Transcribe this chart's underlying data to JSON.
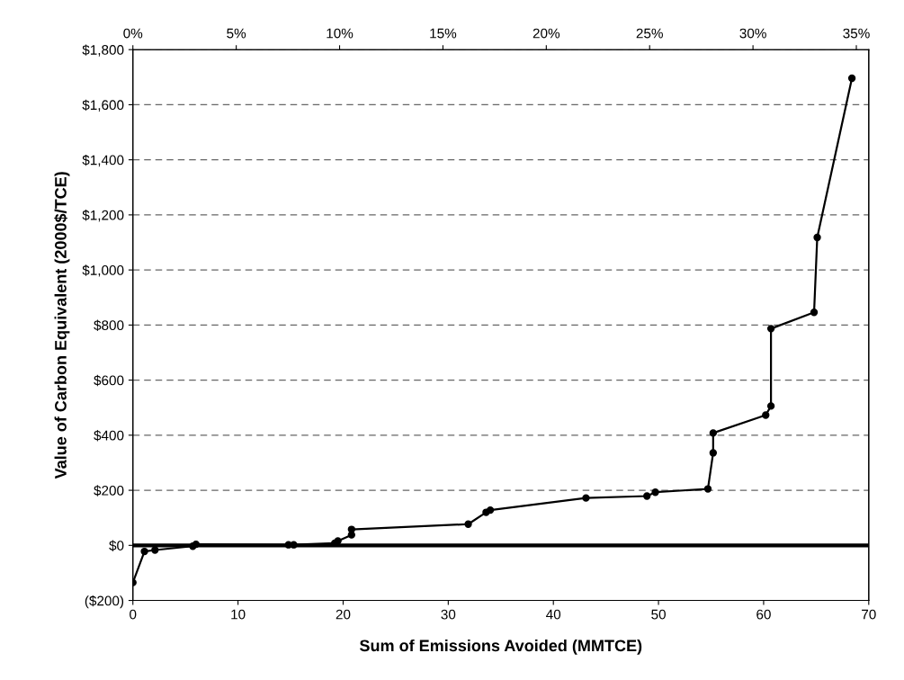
{
  "chart_data": {
    "type": "line",
    "xlabel": "Sum of Emissions Avoided (MMTCE)",
    "ylabel": "Value of Carbon Equivalent (2000$/TCE)",
    "series": [
      {
        "color": "#000000",
        "x": [
          0,
          1.1,
          2.1,
          5.7,
          6.0,
          14.8,
          15.3,
          19.2,
          19.5,
          20.8,
          20.8,
          31.9,
          33.6,
          34.0,
          43.1,
          48.9,
          49.7,
          54.7,
          55.2,
          55.2,
          60.2,
          60.7,
          60.7,
          64.8,
          65.1,
          68.4
        ],
        "values": [
          -135,
          -22,
          -17,
          -3,
          4,
          2,
          2,
          8,
          16,
          38,
          58,
          77,
          120,
          128,
          172,
          179,
          193,
          205,
          336,
          408,
          473,
          506,
          787,
          846,
          1118,
          1696
        ]
      }
    ],
    "xlim": [
      0,
      70
    ],
    "xticks": [
      0,
      10,
      20,
      30,
      40,
      50,
      60,
      70
    ],
    "x2lim": [
      0,
      35.6
    ],
    "x2ticks": [
      {
        "value": 0,
        "label": "0%"
      },
      {
        "value": 5,
        "label": "5%"
      },
      {
        "value": 10,
        "label": "10%"
      },
      {
        "value": 15,
        "label": "15%"
      },
      {
        "value": 20,
        "label": "20%"
      },
      {
        "value": 25,
        "label": "25%"
      },
      {
        "value": 30,
        "label": "30%"
      },
      {
        "value": 35,
        "label": "35%"
      }
    ],
    "ylim": [
      -200,
      1800
    ],
    "yticks": [
      {
        "value": -200,
        "label": "($200)"
      },
      {
        "value": 0,
        "label": "$0"
      },
      {
        "value": 200,
        "label": "$200"
      },
      {
        "value": 400,
        "label": "$400"
      },
      {
        "value": 600,
        "label": "$600"
      },
      {
        "value": 800,
        "label": "$800"
      },
      {
        "value": 1000,
        "label": "$1,000"
      },
      {
        "value": 1200,
        "label": "$1,200"
      },
      {
        "value": 1400,
        "label": "$1,400"
      },
      {
        "value": 1600,
        "label": "$1,600"
      },
      {
        "value": 1800,
        "label": "$1,800"
      }
    ],
    "ref_lines": [
      {
        "axis": "y",
        "value": 0,
        "color": "#000000"
      }
    ],
    "grid": "y",
    "marker": "circle",
    "line_style": "solid",
    "legend": false
  }
}
